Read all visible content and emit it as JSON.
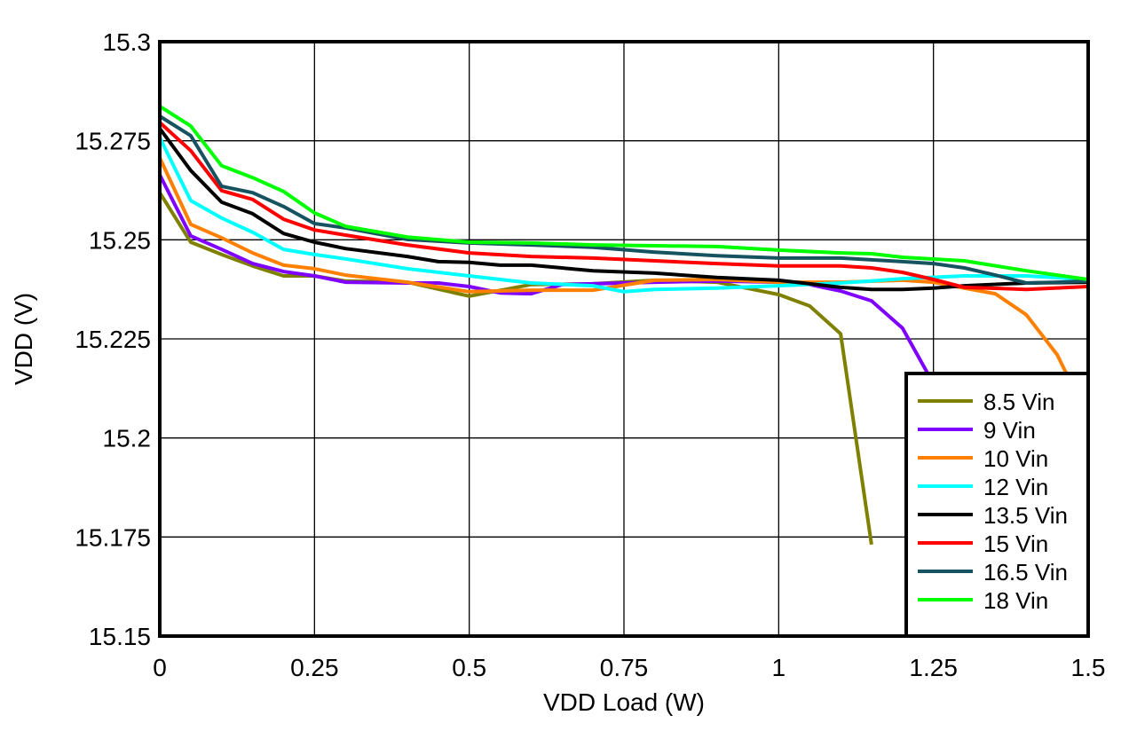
{
  "chart_data": {
    "type": "line",
    "title": "",
    "xlabel": "VDD Load (W)",
    "ylabel": "VDD (V)",
    "xlim": [
      0,
      1.5
    ],
    "ylim": [
      15.15,
      15.3
    ],
    "xticks": [
      "0",
      "0.25",
      "0.5",
      "0.75",
      "1",
      "1.25",
      "1.5"
    ],
    "yticks": [
      "15.3",
      "15.275",
      "15.25",
      "15.225",
      "15.2",
      "15.175",
      "15.15"
    ],
    "grid": true,
    "legend_position": "bottom-right",
    "series": [
      {
        "name": "8.5 Vin",
        "color": "#808000",
        "x": [
          0,
          0.05,
          0.1,
          0.15,
          0.2,
          0.25,
          0.3,
          0.4,
          0.5,
          0.6,
          0.7,
          0.8,
          0.9,
          1.0,
          1.05,
          1.1,
          1.15
        ],
        "y": [
          15.2619,
          15.2494,
          15.2463,
          15.2434,
          15.2409,
          15.2409,
          15.2396,
          15.2393,
          15.2358,
          15.2387,
          15.2389,
          15.2398,
          15.2393,
          15.2362,
          15.2333,
          15.2263,
          15.1731
        ]
      },
      {
        "name": "9 Vin",
        "color": "#8000ff",
        "x": [
          0,
          0.05,
          0.1,
          0.15,
          0.2,
          0.25,
          0.3,
          0.4,
          0.45,
          0.5,
          0.55,
          0.6,
          0.65,
          0.7,
          0.8,
          0.9,
          1.0,
          1.05,
          1.1,
          1.15,
          1.2,
          1.24,
          1.3
        ],
        "y": [
          15.2664,
          15.251,
          15.2476,
          15.244,
          15.242,
          15.2409,
          15.2393,
          15.2391,
          15.2391,
          15.2382,
          15.2366,
          15.2364,
          15.2387,
          15.2389,
          15.2393,
          15.2396,
          15.2393,
          15.2387,
          15.2371,
          15.2346,
          15.2277,
          15.2165,
          15.19
        ]
      },
      {
        "name": "10 Vin",
        "color": "#ff8000",
        "x": [
          0,
          0.05,
          0.1,
          0.15,
          0.2,
          0.25,
          0.3,
          0.4,
          0.5,
          0.6,
          0.7,
          0.8,
          0.9,
          1.0,
          1.1,
          1.2,
          1.25,
          1.3,
          1.35,
          1.4,
          1.45,
          1.5
        ],
        "y": [
          15.2707,
          15.2539,
          15.2505,
          15.2467,
          15.2436,
          15.2427,
          15.2411,
          15.2393,
          15.2369,
          15.2373,
          15.2373,
          15.2398,
          15.24,
          15.2393,
          15.2393,
          15.2398,
          15.2393,
          15.2378,
          15.2364,
          15.2311,
          15.221,
          15.205
        ]
      },
      {
        "name": "12 Vin",
        "color": "#00ffff",
        "x": [
          0,
          0.05,
          0.1,
          0.15,
          0.2,
          0.25,
          0.3,
          0.4,
          0.5,
          0.6,
          0.7,
          0.75,
          0.8,
          0.9,
          1.0,
          1.1,
          1.15,
          1.2,
          1.3,
          1.4,
          1.5
        ],
        "y": [
          15.2758,
          15.2599,
          15.2555,
          15.2519,
          15.2476,
          15.2463,
          15.2452,
          15.2427,
          15.2409,
          15.2391,
          15.2384,
          15.2369,
          15.2375,
          15.2378,
          15.2384,
          15.2391,
          15.2396,
          15.2402,
          15.2409,
          15.2409,
          15.24
        ]
      },
      {
        "name": "13.5 Vin",
        "color": "#000000",
        "x": [
          0,
          0.05,
          0.1,
          0.15,
          0.2,
          0.25,
          0.3,
          0.4,
          0.45,
          0.5,
          0.55,
          0.6,
          0.7,
          0.8,
          0.9,
          1.0,
          1.05,
          1.1,
          1.15,
          1.2,
          1.25,
          1.3,
          1.4,
          1.5
        ],
        "y": [
          15.2781,
          15.2675,
          15.2595,
          15.2566,
          15.2516,
          15.2494,
          15.2478,
          15.2458,
          15.2445,
          15.2443,
          15.2436,
          15.2436,
          15.2422,
          15.2416,
          15.2405,
          15.2398,
          15.2389,
          15.238,
          15.2375,
          15.2375,
          15.2378,
          15.2384,
          15.2391,
          15.2393
        ]
      },
      {
        "name": "15 Vin",
        "color": "#ff0000",
        "x": [
          0,
          0.05,
          0.1,
          0.15,
          0.2,
          0.25,
          0.3,
          0.4,
          0.5,
          0.6,
          0.7,
          0.8,
          0.9,
          1.0,
          1.1,
          1.15,
          1.2,
          1.25,
          1.3,
          1.4,
          1.5
        ],
        "y": [
          15.2796,
          15.2725,
          15.2624,
          15.2602,
          15.2552,
          15.2525,
          15.2512,
          15.2487,
          15.2467,
          15.2458,
          15.2454,
          15.2447,
          15.244,
          15.2434,
          15.2434,
          15.2429,
          15.2418,
          15.24,
          15.238,
          15.2375,
          15.2382
        ]
      },
      {
        "name": "16.5 Vin",
        "color": "#16525f",
        "x": [
          0,
          0.05,
          0.1,
          0.15,
          0.2,
          0.25,
          0.3,
          0.4,
          0.5,
          0.6,
          0.7,
          0.8,
          0.9,
          1.0,
          1.1,
          1.2,
          1.25,
          1.3,
          1.35,
          1.4,
          1.45,
          1.5
        ],
        "y": [
          15.2812,
          15.2763,
          15.2635,
          15.2619,
          15.2584,
          15.2541,
          15.253,
          15.2501,
          15.2492,
          15.2487,
          15.2481,
          15.2469,
          15.246,
          15.2454,
          15.2454,
          15.2445,
          15.244,
          15.2429,
          15.2411,
          15.2391,
          15.2393,
          15.2396
        ]
      },
      {
        "name": "18 Vin",
        "color": "#00ff00",
        "x": [
          0,
          0.05,
          0.1,
          0.15,
          0.2,
          0.25,
          0.3,
          0.4,
          0.5,
          0.6,
          0.7,
          0.8,
          0.9,
          1.0,
          1.1,
          1.15,
          1.2,
          1.3,
          1.4,
          1.5
        ],
        "y": [
          15.2837,
          15.2787,
          15.2687,
          15.2657,
          15.2622,
          15.2568,
          15.2534,
          15.2507,
          15.2494,
          15.2492,
          15.2487,
          15.2485,
          15.2483,
          15.2474,
          15.2467,
          15.2465,
          15.2456,
          15.2447,
          15.2422,
          15.24
        ]
      }
    ]
  }
}
